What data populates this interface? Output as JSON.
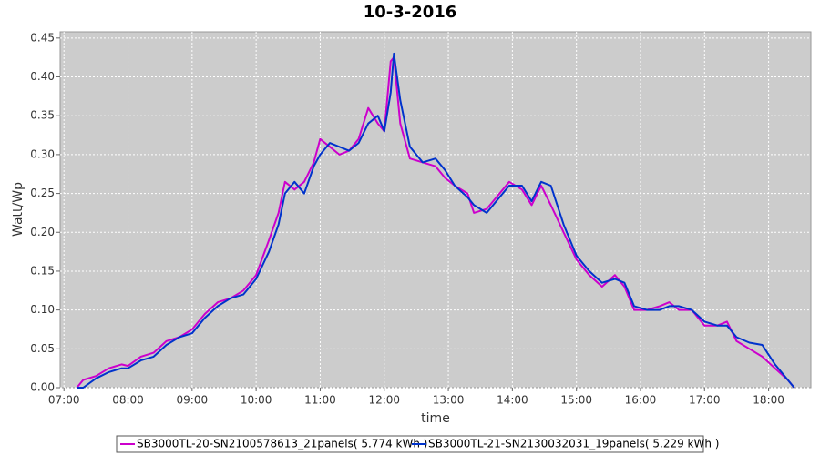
{
  "chart_data": {
    "type": "line",
    "title": "10-3-2016",
    "x_label": "time",
    "y_label": "Watt/Wp",
    "x": [
      7.2,
      7.3,
      7.5,
      7.7,
      7.9,
      8.0,
      8.2,
      8.4,
      8.6,
      8.8,
      9.0,
      9.2,
      9.4,
      9.6,
      9.8,
      10.0,
      10.2,
      10.35,
      10.45,
      10.6,
      10.75,
      10.9,
      11.0,
      11.15,
      11.3,
      11.45,
      11.6,
      11.75,
      11.9,
      12.0,
      12.1,
      12.15,
      12.25,
      12.4,
      12.6,
      12.8,
      12.95,
      13.1,
      13.3,
      13.4,
      13.6,
      13.8,
      13.95,
      14.15,
      14.3,
      14.45,
      14.6,
      14.8,
      15.0,
      15.2,
      15.4,
      15.6,
      15.75,
      15.9,
      16.1,
      16.3,
      16.45,
      16.6,
      16.8,
      17.0,
      17.2,
      17.35,
      17.5,
      17.7,
      17.9,
      18.1,
      18.3,
      18.4
    ],
    "series": [
      {
        "name": "SB3000TL-20-SN2100578613_21panels( 5.774 kWh )",
        "color": "#cc00cc",
        "values": [
          0,
          0.01,
          0.015,
          0.025,
          0.03,
          0.028,
          0.04,
          0.045,
          0.06,
          0.065,
          0.075,
          0.095,
          0.11,
          0.115,
          0.125,
          0.145,
          0.19,
          0.225,
          0.265,
          0.255,
          0.265,
          0.29,
          0.32,
          0.31,
          0.3,
          0.305,
          0.32,
          0.36,
          0.34,
          0.33,
          0.42,
          0.425,
          0.34,
          0.295,
          0.29,
          0.285,
          0.27,
          0.26,
          0.25,
          0.225,
          0.23,
          0.25,
          0.265,
          0.255,
          0.235,
          0.26,
          0.235,
          0.2,
          0.165,
          0.145,
          0.13,
          0.145,
          0.13,
          0.1,
          0.1,
          0.105,
          0.11,
          0.1,
          0.1,
          0.08,
          0.08,
          0.085,
          0.06,
          0.05,
          0.04,
          0.025,
          0.01,
          0
        ]
      },
      {
        "name": "SB3000TL-21-SN2130032031_19panels( 5.229 kWh )",
        "color": "#0033cc",
        "values": [
          0,
          0,
          0.012,
          0.02,
          0.025,
          0.025,
          0.035,
          0.04,
          0.055,
          0.065,
          0.07,
          0.09,
          0.105,
          0.115,
          0.12,
          0.14,
          0.175,
          0.21,
          0.25,
          0.265,
          0.25,
          0.285,
          0.3,
          0.315,
          0.31,
          0.305,
          0.315,
          0.34,
          0.35,
          0.33,
          0.38,
          0.43,
          0.37,
          0.31,
          0.29,
          0.295,
          0.28,
          0.26,
          0.245,
          0.235,
          0.225,
          0.245,
          0.26,
          0.26,
          0.24,
          0.265,
          0.26,
          0.21,
          0.17,
          0.15,
          0.135,
          0.14,
          0.135,
          0.105,
          0.1,
          0.1,
          0.105,
          0.105,
          0.1,
          0.085,
          0.08,
          0.08,
          0.065,
          0.058,
          0.055,
          0.03,
          0.01,
          0
        ]
      }
    ],
    "xlim": [
      6.94,
      18.66
    ],
    "xticks": [
      {
        "value": 7,
        "label": "07:00"
      },
      {
        "value": 8,
        "label": "08:00"
      },
      {
        "value": 9,
        "label": "09:00"
      },
      {
        "value": 10,
        "label": "10:00"
      },
      {
        "value": 11,
        "label": "11:00"
      },
      {
        "value": 12,
        "label": "12:00"
      },
      {
        "value": 13,
        "label": "13:00"
      },
      {
        "value": 14,
        "label": "14:00"
      },
      {
        "value": 15,
        "label": "15:00"
      },
      {
        "value": 16,
        "label": "16:00"
      },
      {
        "value": 17,
        "label": "17:00"
      },
      {
        "value": 18,
        "label": "18:00"
      }
    ],
    "ylim": [
      0,
      0.458
    ],
    "yticks": [
      {
        "value": 0,
        "label": "0.00"
      },
      0.05,
      {
        "value": 0.1,
        "label": "0.10"
      },
      0.15,
      {
        "value": 0.2,
        "label": "0.20"
      },
      0.25,
      {
        "value": 0.3,
        "label": "0.30"
      },
      0.35,
      {
        "value": 0.4,
        "label": "0.40"
      },
      0.45
    ],
    "grid": true,
    "legend": "bottom"
  }
}
